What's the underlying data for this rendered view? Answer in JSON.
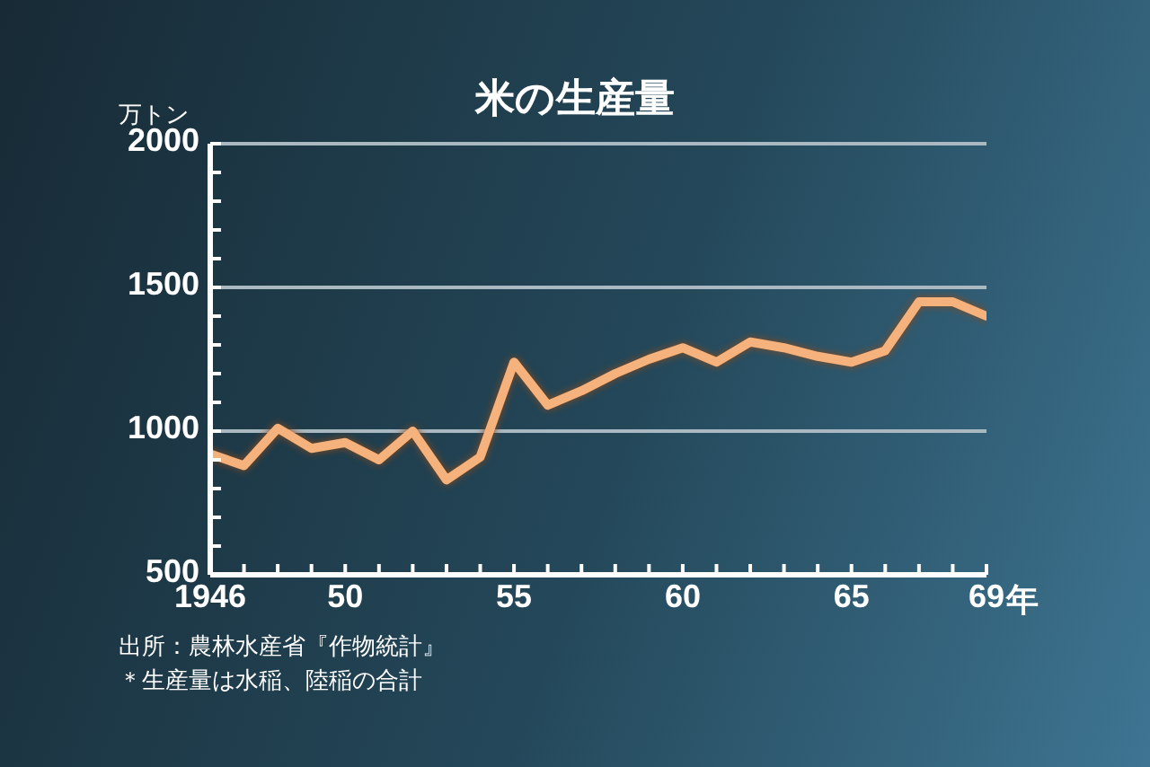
{
  "chart_data": {
    "type": "line",
    "title": "米の生産量",
    "ylabel": "万トン",
    "x": [
      1946,
      1947,
      1948,
      1949,
      1950,
      1951,
      1952,
      1953,
      1954,
      1955,
      1956,
      1957,
      1958,
      1959,
      1960,
      1961,
      1962,
      1963,
      1964,
      1965,
      1966,
      1967,
      1968,
      1969
    ],
    "series": [
      {
        "color": "#f6b27c",
        "values": [
          920,
          880,
          1010,
          940,
          960,
          900,
          1000,
          830,
          910,
          1240,
          1090,
          1140,
          1200,
          1250,
          1290,
          1240,
          1310,
          1290,
          1260,
          1240,
          1280,
          1450,
          1450,
          1400
        ]
      }
    ],
    "xlim": [
      1946,
      1969
    ],
    "xticks": [
      {
        "value": 1946,
        "label": "1946"
      },
      {
        "value": 1947,
        "label": null
      },
      {
        "value": 1948,
        "label": null
      },
      {
        "value": 1949,
        "label": null
      },
      {
        "value": 1950,
        "label": "50"
      },
      {
        "value": 1951,
        "label": null
      },
      {
        "value": 1952,
        "label": null
      },
      {
        "value": 1953,
        "label": null
      },
      {
        "value": 1954,
        "label": null
      },
      {
        "value": 1955,
        "label": "55"
      },
      {
        "value": 1956,
        "label": null
      },
      {
        "value": 1957,
        "label": null
      },
      {
        "value": 1958,
        "label": null
      },
      {
        "value": 1959,
        "label": null
      },
      {
        "value": 1960,
        "label": "60"
      },
      {
        "value": 1961,
        "label": null
      },
      {
        "value": 1962,
        "label": null
      },
      {
        "value": 1963,
        "label": null
      },
      {
        "value": 1964,
        "label": null
      },
      {
        "value": 1965,
        "label": "65"
      },
      {
        "value": 1966,
        "label": null
      },
      {
        "value": 1967,
        "label": null
      },
      {
        "value": 1968,
        "label": null
      },
      {
        "value": 1969,
        "label": "69"
      }
    ],
    "xlabel": "年",
    "ylim": [
      500,
      2000
    ],
    "yticks": [
      500,
      {
        "value": 600,
        "label": null
      },
      {
        "value": 700,
        "label": null
      },
      {
        "value": 800,
        "label": null
      },
      {
        "value": 900,
        "label": null
      },
      1000,
      {
        "value": 1100,
        "label": null
      },
      {
        "value": 1200,
        "label": null
      },
      {
        "value": 1300,
        "label": null
      },
      {
        "value": 1400,
        "label": null
      },
      1500,
      {
        "value": 1600,
        "label": null
      },
      {
        "value": 1700,
        "label": null
      },
      {
        "value": 1800,
        "label": null
      },
      {
        "value": 1900,
        "label": null
      },
      2000
    ],
    "grid": "y",
    "marker": "none",
    "line_style": "solid",
    "annotations": [
      "出所：農林水産省『作物統計』",
      "＊生産量は水稲、陸稲の合計"
    ]
  }
}
